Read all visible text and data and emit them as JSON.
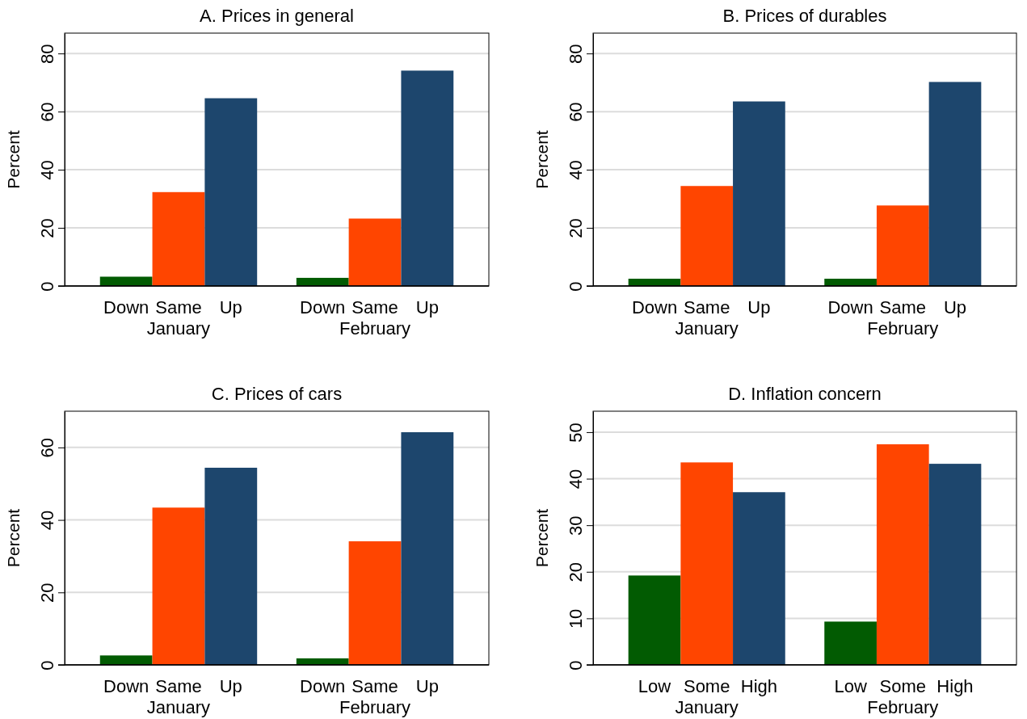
{
  "chart_data": [
    {
      "type": "bar",
      "title": "A. Prices in general",
      "ylabel": "Percent",
      "categories": [
        "January",
        "February"
      ],
      "ylim": [
        0,
        87
      ],
      "yticks": [
        0,
        20,
        40,
        60,
        80
      ],
      "grid": "y",
      "series": [
        {
          "name": "Down",
          "color": "#025b02",
          "values": [
            3.2,
            2.8
          ]
        },
        {
          "name": "Same",
          "color": "#ff4500",
          "values": [
            32.3,
            23.2
          ]
        },
        {
          "name": "Up",
          "color": "#1d466d",
          "values": [
            64.6,
            74.1
          ]
        }
      ]
    },
    {
      "type": "bar",
      "title": "B. Prices of durables",
      "ylabel": "Percent",
      "categories": [
        "January",
        "February"
      ],
      "ylim": [
        0,
        87
      ],
      "yticks": [
        0,
        20,
        40,
        60,
        80
      ],
      "grid": "y",
      "series": [
        {
          "name": "Down",
          "color": "#025b02",
          "values": [
            2.5,
            2.5
          ]
        },
        {
          "name": "Same",
          "color": "#ff4500",
          "values": [
            34.4,
            27.7
          ]
        },
        {
          "name": "Up",
          "color": "#1d466d",
          "values": [
            63.5,
            70.2
          ]
        }
      ]
    },
    {
      "type": "bar",
      "title": "C. Prices of cars",
      "ylabel": "Percent",
      "categories": [
        "January",
        "February"
      ],
      "ylim": [
        0,
        70
      ],
      "yticks": [
        0,
        20,
        40,
        60
      ],
      "grid": "y",
      "series": [
        {
          "name": "Down",
          "color": "#025b02",
          "values": [
            2.6,
            1.8
          ]
        },
        {
          "name": "Same",
          "color": "#ff4500",
          "values": [
            43.4,
            34.1
          ]
        },
        {
          "name": "Up",
          "color": "#1d466d",
          "values": [
            54.4,
            64.2
          ]
        }
      ]
    },
    {
      "type": "bar",
      "title": "D. Inflation concern",
      "ylabel": "Percent",
      "categories": [
        "January",
        "February"
      ],
      "ylim": [
        0,
        54.5
      ],
      "yticks": [
        0,
        10,
        20,
        30,
        40,
        50
      ],
      "grid": "y",
      "series": [
        {
          "name": "Low",
          "color": "#025b02",
          "values": [
            19.2,
            9.3
          ]
        },
        {
          "name": "Some",
          "color": "#ff4500",
          "values": [
            43.5,
            47.4
          ]
        },
        {
          "name": "High",
          "color": "#1d466d",
          "values": [
            37.1,
            43.2
          ]
        }
      ]
    }
  ]
}
